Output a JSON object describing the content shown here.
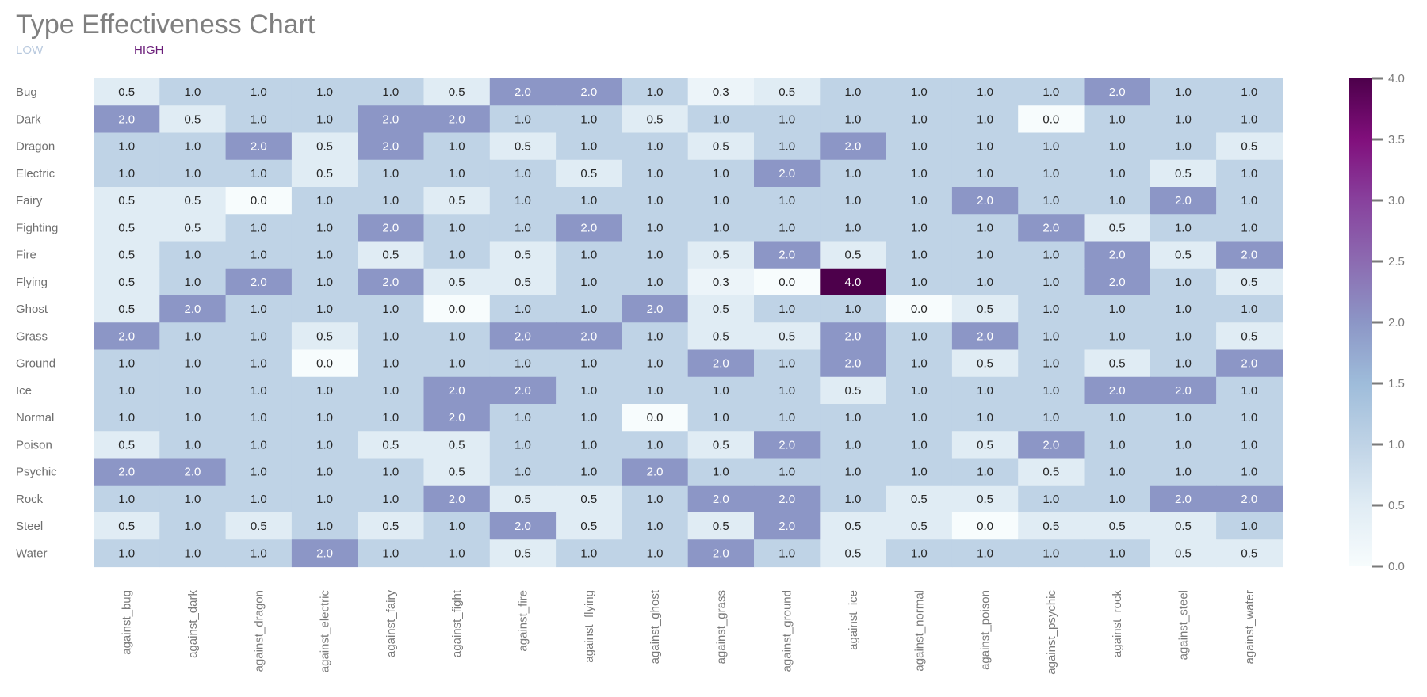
{
  "chart_data": {
    "type": "heatmap",
    "title": "Type Effectiveness Chart",
    "legend": {
      "low_label": "LOW",
      "high_label": "HIGH"
    },
    "rows": [
      "Bug",
      "Dark",
      "Dragon",
      "Electric",
      "Fairy",
      "Fighting",
      "Fire",
      "Flying",
      "Ghost",
      "Grass",
      "Ground",
      "Ice",
      "Normal",
      "Poison",
      "Psychic",
      "Rock",
      "Steel",
      "Water"
    ],
    "columns": [
      "against_bug",
      "against_dark",
      "against_dragon",
      "against_electric",
      "against_fairy",
      "against_fight",
      "against_fire",
      "against_flying",
      "against_ghost",
      "against_grass",
      "against_ground",
      "against_ice",
      "against_normal",
      "against_poison",
      "against_psychic",
      "against_rock",
      "against_steel",
      "against_water"
    ],
    "values": [
      [
        0.5,
        1.0,
        1.0,
        1.0,
        1.0,
        0.5,
        2.0,
        2.0,
        1.0,
        0.25,
        0.5,
        1.0,
        1.0,
        1.0,
        1.0,
        2.0,
        1.0,
        1.0
      ],
      [
        2.0,
        0.5,
        1.0,
        1.0,
        2.0,
        2.0,
        1.0,
        1.0,
        0.5,
        1.0,
        1.0,
        1.0,
        1.0,
        1.0,
        0.0,
        1.0,
        1.0,
        1.0
      ],
      [
        1.0,
        1.0,
        2.0,
        0.5,
        2.0,
        1.0,
        0.5,
        1.0,
        1.0,
        0.5,
        1.0,
        2.0,
        1.0,
        1.0,
        1.0,
        1.0,
        1.0,
        0.5
      ],
      [
        1.0,
        1.0,
        1.0,
        0.5,
        1.0,
        1.0,
        1.0,
        0.5,
        1.0,
        1.0,
        2.0,
        1.0,
        1.0,
        1.0,
        1.0,
        1.0,
        0.5,
        1.0
      ],
      [
        0.5,
        0.5,
        0.0,
        1.0,
        1.0,
        0.5,
        1.0,
        1.0,
        1.0,
        1.0,
        1.0,
        1.0,
        1.0,
        2.0,
        1.0,
        1.0,
        2.0,
        1.0
      ],
      [
        0.5,
        0.5,
        1.0,
        1.0,
        2.0,
        1.0,
        1.0,
        2.0,
        1.0,
        1.0,
        1.0,
        1.0,
        1.0,
        1.0,
        2.0,
        0.5,
        1.0,
        1.0
      ],
      [
        0.5,
        1.0,
        1.0,
        1.0,
        0.5,
        1.0,
        0.5,
        1.0,
        1.0,
        0.5,
        2.0,
        0.5,
        1.0,
        1.0,
        1.0,
        2.0,
        0.5,
        2.0
      ],
      [
        0.5,
        1.0,
        2.0,
        1.0,
        2.0,
        0.5,
        0.5,
        1.0,
        1.0,
        0.25,
        0.0,
        4.0,
        1.0,
        1.0,
        1.0,
        2.0,
        1.0,
        0.5
      ],
      [
        0.5,
        2.0,
        1.0,
        1.0,
        1.0,
        0.0,
        1.0,
        1.0,
        2.0,
        0.5,
        1.0,
        1.0,
        0.0,
        0.5,
        1.0,
        1.0,
        1.0,
        1.0
      ],
      [
        2.0,
        1.0,
        1.0,
        0.5,
        1.0,
        1.0,
        2.0,
        2.0,
        1.0,
        0.5,
        0.5,
        2.0,
        1.0,
        2.0,
        1.0,
        1.0,
        1.0,
        0.5
      ],
      [
        1.0,
        1.0,
        1.0,
        0.0,
        1.0,
        1.0,
        1.0,
        1.0,
        1.0,
        2.0,
        1.0,
        2.0,
        1.0,
        0.5,
        1.0,
        0.5,
        1.0,
        2.0
      ],
      [
        1.0,
        1.0,
        1.0,
        1.0,
        1.0,
        2.0,
        2.0,
        1.0,
        1.0,
        1.0,
        1.0,
        0.5,
        1.0,
        1.0,
        1.0,
        2.0,
        2.0,
        1.0
      ],
      [
        1.0,
        1.0,
        1.0,
        1.0,
        1.0,
        2.0,
        1.0,
        1.0,
        0.0,
        1.0,
        1.0,
        1.0,
        1.0,
        1.0,
        1.0,
        1.0,
        1.0,
        1.0
      ],
      [
        0.5,
        1.0,
        1.0,
        1.0,
        0.5,
        0.5,
        1.0,
        1.0,
        1.0,
        0.5,
        2.0,
        1.0,
        1.0,
        0.5,
        2.0,
        1.0,
        1.0,
        1.0
      ],
      [
        2.0,
        2.0,
        1.0,
        1.0,
        1.0,
        0.5,
        1.0,
        1.0,
        2.0,
        1.0,
        1.0,
        1.0,
        1.0,
        1.0,
        0.5,
        1.0,
        1.0,
        1.0
      ],
      [
        1.0,
        1.0,
        1.0,
        1.0,
        1.0,
        2.0,
        0.5,
        0.5,
        1.0,
        2.0,
        2.0,
        1.0,
        0.5,
        0.5,
        1.0,
        1.0,
        2.0,
        2.0
      ],
      [
        0.5,
        1.0,
        0.5,
        1.0,
        0.5,
        1.0,
        2.0,
        0.5,
        1.0,
        0.5,
        2.0,
        0.5,
        0.5,
        0.0,
        0.5,
        0.5,
        0.5,
        1.0
      ],
      [
        1.0,
        1.0,
        1.0,
        2.0,
        1.0,
        1.0,
        0.5,
        1.0,
        1.0,
        2.0,
        1.0,
        0.5,
        1.0,
        1.0,
        1.0,
        1.0,
        0.5,
        0.5
      ]
    ],
    "value_range": [
      0,
      4
    ],
    "colorbar_ticks": [
      "0.0",
      "0.5",
      "1.0",
      "1.5",
      "2.0",
      "2.5",
      "3.0",
      "3.5",
      "4.0"
    ],
    "colormap": "BuPu",
    "colors": {
      "low": "#f7fcfd",
      "mid": "#8c96c6",
      "high": "#4d004b"
    }
  }
}
